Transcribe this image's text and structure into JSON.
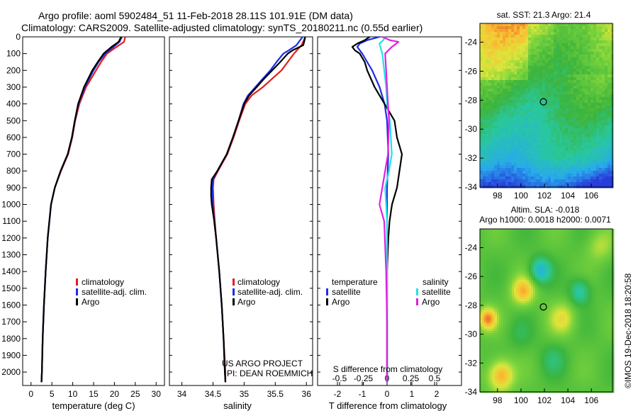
{
  "header": {
    "title_line1": "Argo profile: aoml 5902484_51 11-Feb-2018 28.11S 101.91E (DM data)",
    "title_line2": "Climatology: CARS2009. Satellite-adjusted climatology: synTS_20180211.nc (0.55d earlier)"
  },
  "colors": {
    "climatology": "#e02020",
    "satellite_adj": "#1a2ee6",
    "argo": "#000000",
    "t_satellite": "#1a2ee6",
    "t_argo": "#000000",
    "s_satellite": "#25e0e8",
    "s_argo": "#e020e0"
  },
  "chart_data": [
    {
      "type": "line",
      "name": "temperature-profile",
      "xlabel": "temperature (deg C)",
      "xlim": [
        -2,
        32
      ],
      "ylim": [
        0,
        2080
      ],
      "x_ticks": [
        "0",
        "5",
        "10",
        "15",
        "20",
        "25",
        "30"
      ],
      "x_tick_values": [
        0,
        5,
        10,
        15,
        20,
        25,
        30
      ],
      "y_ticks": [
        "0",
        "100",
        "200",
        "300",
        "400",
        "500",
        "600",
        "700",
        "800",
        "900",
        "1000",
        "1100",
        "1200",
        "1300",
        "1400",
        "1500",
        "1600",
        "1700",
        "1800",
        "1900",
        "2000"
      ],
      "y_tick_values": [
        0,
        100,
        200,
        300,
        400,
        500,
        600,
        700,
        800,
        900,
        1000,
        1100,
        1200,
        1300,
        1400,
        1500,
        1600,
        1700,
        1800,
        1900,
        2000
      ],
      "legend": [
        "climatology",
        "satellite-adj. clim.",
        "Argo"
      ],
      "series": [
        {
          "name": "climatology",
          "color_key": "climatology",
          "depth": [
            0,
            30,
            60,
            100,
            150,
            200,
            300,
            400,
            500,
            600,
            700,
            800,
            900,
            1000,
            1200,
            1400,
            1600,
            1800,
            2000,
            2060
          ],
          "values": [
            22.6,
            22.3,
            20.5,
            18.2,
            16.8,
            15.6,
            13.2,
            11.6,
            10.6,
            9.9,
            8.9,
            7.2,
            5.7,
            4.8,
            4.0,
            3.5,
            3.1,
            2.8,
            2.6,
            2.5
          ]
        },
        {
          "name": "satellite-adj. clim.",
          "color_key": "satellite_adj",
          "depth": [
            0,
            30,
            60,
            100,
            150,
            200,
            300,
            400,
            500,
            600,
            700,
            800,
            900,
            1000,
            1200,
            1400,
            1600,
            1800,
            2000,
            2060
          ],
          "values": [
            21.8,
            21.2,
            19.8,
            17.8,
            16.2,
            15.0,
            12.9,
            11.4,
            10.5,
            9.8,
            8.8,
            7.1,
            5.7,
            4.8,
            4.0,
            3.5,
            3.1,
            2.8,
            2.6,
            2.5
          ]
        },
        {
          "name": "Argo",
          "color_key": "argo",
          "depth": [
            0,
            30,
            60,
            100,
            150,
            200,
            300,
            400,
            500,
            600,
            700,
            800,
            900,
            1000,
            1200,
            1400,
            1600,
            1800,
            2000,
            2060
          ],
          "values": [
            21.6,
            21.0,
            19.3,
            17.4,
            16.0,
            14.7,
            12.7,
            11.3,
            10.5,
            9.8,
            8.8,
            7.1,
            5.7,
            4.8,
            4.0,
            3.5,
            3.1,
            2.8,
            2.6,
            2.5
          ]
        }
      ]
    },
    {
      "type": "line",
      "name": "salinity-profile",
      "xlabel": "salinity",
      "xlim": [
        33.8,
        36.1
      ],
      "ylim": [
        0,
        2080
      ],
      "x_ticks": [
        "34",
        "34.5",
        "35",
        "35.5",
        "36"
      ],
      "x_tick_values": [
        34,
        34.5,
        35,
        35.5,
        36
      ],
      "legend": [
        "climatology",
        "satellite-adj. clim.",
        "Argo"
      ],
      "annotation_lines": [
        "US ARGO PROJECT",
        "PI: DEAN ROEMMICH"
      ],
      "series": [
        {
          "name": "climatology",
          "color_key": "climatology",
          "depth": [
            0,
            20,
            50,
            80,
            100,
            150,
            200,
            250,
            300,
            350,
            400,
            500,
            600,
            700,
            800,
            850,
            900,
            1000,
            1100,
            1200,
            1400,
            1600,
            1800,
            2000,
            2060
          ],
          "values": [
            35.98,
            35.96,
            35.92,
            35.85,
            35.8,
            35.7,
            35.6,
            35.45,
            35.3,
            35.12,
            35.02,
            34.92,
            34.83,
            34.73,
            34.58,
            34.51,
            34.5,
            34.51,
            34.53,
            34.55,
            34.6,
            34.64,
            34.67,
            34.7,
            34.7
          ]
        },
        {
          "name": "satellite-adj. clim.",
          "color_key": "satellite_adj",
          "depth": [
            0,
            20,
            50,
            80,
            100,
            150,
            200,
            250,
            300,
            350,
            400,
            500,
            600,
            700,
            800,
            850,
            900,
            1000,
            1100,
            1200,
            1400,
            1600,
            1800,
            2000,
            2060
          ],
          "values": [
            35.94,
            35.9,
            35.84,
            35.72,
            35.63,
            35.52,
            35.42,
            35.3,
            35.18,
            35.06,
            34.99,
            34.91,
            34.82,
            34.72,
            34.57,
            34.5,
            34.49,
            34.5,
            34.52,
            34.55,
            34.6,
            34.64,
            34.67,
            34.69,
            34.7
          ]
        },
        {
          "name": "Argo",
          "color_key": "argo",
          "depth": [
            0,
            20,
            50,
            80,
            100,
            150,
            200,
            250,
            300,
            350,
            400,
            500,
            600,
            700,
            800,
            850,
            900,
            950,
            1000,
            1050,
            1100,
            1200,
            1400,
            1600,
            1800,
            2000,
            2060
          ],
          "values": [
            35.98,
            35.97,
            35.95,
            35.78,
            35.7,
            35.58,
            35.45,
            35.32,
            35.2,
            35.08,
            35.0,
            34.91,
            34.82,
            34.72,
            34.57,
            34.48,
            34.47,
            34.47,
            34.48,
            34.5,
            34.52,
            34.55,
            34.6,
            34.64,
            34.67,
            34.69,
            34.7
          ]
        }
      ]
    },
    {
      "type": "line",
      "name": "difference-profile",
      "xlabel": "T difference from climatology",
      "xlim_T": [
        -2.8,
        3.0
      ],
      "x_ticks_T": [
        "-2",
        "-1",
        "0",
        "1",
        "2"
      ],
      "x_tick_values_T": [
        -2,
        -1,
        0,
        1,
        2
      ],
      "top_axis_label": "S difference from climatology",
      "x_ticks_S": [
        "-0.5",
        "-0.25",
        "0",
        "0.25",
        "0.5"
      ],
      "x_tick_values_S": [
        -0.5,
        -0.25,
        0,
        0.25,
        0.5
      ],
      "legend_T_title": "temperature",
      "legend_S_title": "salinity",
      "legend_T": [
        "satellite",
        "Argo"
      ],
      "legend_S": [
        "satellite",
        "Argo"
      ],
      "series": [
        {
          "name": "T satellite",
          "color_key": "t_satellite",
          "depth": [
            0,
            20,
            40,
            60,
            100,
            150,
            200,
            300,
            400,
            500,
            700,
            900,
            1100,
            1400,
            1700,
            2060
          ],
          "values": [
            -0.3,
            -0.8,
            -1.1,
            -1.2,
            -1.0,
            -0.8,
            -0.6,
            -0.3,
            -0.1,
            0.0,
            0.05,
            0.0,
            0.0,
            0.0,
            0.0,
            0.0
          ]
        },
        {
          "name": "T Argo",
          "color_key": "t_argo",
          "depth": [
            0,
            20,
            40,
            60,
            80,
            100,
            150,
            200,
            300,
            400,
            500,
            600,
            700,
            800,
            900,
            1000,
            1100,
            1200,
            1400,
            1700,
            2060
          ],
          "values": [
            -0.7,
            -0.9,
            -1.2,
            -1.4,
            -1.3,
            -1.1,
            -0.9,
            -0.8,
            -0.5,
            -0.1,
            0.3,
            0.4,
            0.6,
            0.5,
            0.4,
            0.2,
            0.1,
            0.05,
            0.0,
            0.0,
            0.0
          ]
        },
        {
          "name": "S satellite",
          "color_key": "s_satellite",
          "depth": [
            0,
            20,
            40,
            60,
            100,
            200,
            300,
            400,
            500,
            700,
            800,
            900,
            1000,
            1100,
            1400,
            1700,
            2060
          ],
          "values": [
            -0.02,
            -0.04,
            -0.08,
            -0.07,
            -0.05,
            -0.03,
            -0.01,
            0.0,
            0.03,
            0.05,
            0.02,
            -0.02,
            -0.01,
            0.0,
            0.0,
            0.0,
            0.0
          ]
        },
        {
          "name": "S Argo",
          "color_key": "s_argo",
          "depth": [
            0,
            20,
            30,
            60,
            100,
            200,
            300,
            400,
            500,
            700,
            800,
            900,
            1000,
            1100,
            1400,
            1700,
            2060
          ],
          "values": [
            -0.05,
            0.03,
            0.12,
            0.05,
            -0.02,
            -0.01,
            0.0,
            0.01,
            0.02,
            0.01,
            -0.02,
            -0.05,
            -0.08,
            -0.03,
            -0.01,
            0.0,
            0.0
          ]
        }
      ]
    },
    {
      "type": "heatmap",
      "name": "sst-map",
      "title": "sat. SST: 21.3 Argo: 21.4",
      "x_ticks": [
        "98",
        "100",
        "102",
        "104",
        "106"
      ],
      "x_tick_values": [
        98,
        100,
        102,
        104,
        106
      ],
      "y_ticks": [
        "-24",
        "-26",
        "-28",
        "-30",
        "-32",
        "-34"
      ],
      "y_tick_values": [
        -24,
        -26,
        -28,
        -30,
        -32,
        -34
      ],
      "lon_range": [
        96.5,
        107.8
      ],
      "lat_range": [
        -34,
        -22.7
      ],
      "marker": {
        "lon": 101.91,
        "lat": -28.11
      }
    },
    {
      "type": "heatmap",
      "name": "sla-map",
      "title_line1": "Altim. SLA: -0.018",
      "title_line2": "Argo h1000: 0.0018 h2000: 0.0071",
      "x_ticks": [
        "98",
        "100",
        "102",
        "104",
        "106"
      ],
      "x_tick_values": [
        98,
        100,
        102,
        104,
        106
      ],
      "y_ticks": [
        "-24",
        "-26",
        "-28",
        "-30",
        "-32",
        "-34"
      ],
      "y_tick_values": [
        -24,
        -26,
        -28,
        -30,
        -32,
        -34
      ],
      "lon_range": [
        96.5,
        107.8
      ],
      "lat_range": [
        -34,
        -22.7
      ],
      "marker": {
        "lon": 101.91,
        "lat": -28.11
      }
    }
  ],
  "credit": "©IMOS 19-Dec-2018 18:20:58"
}
